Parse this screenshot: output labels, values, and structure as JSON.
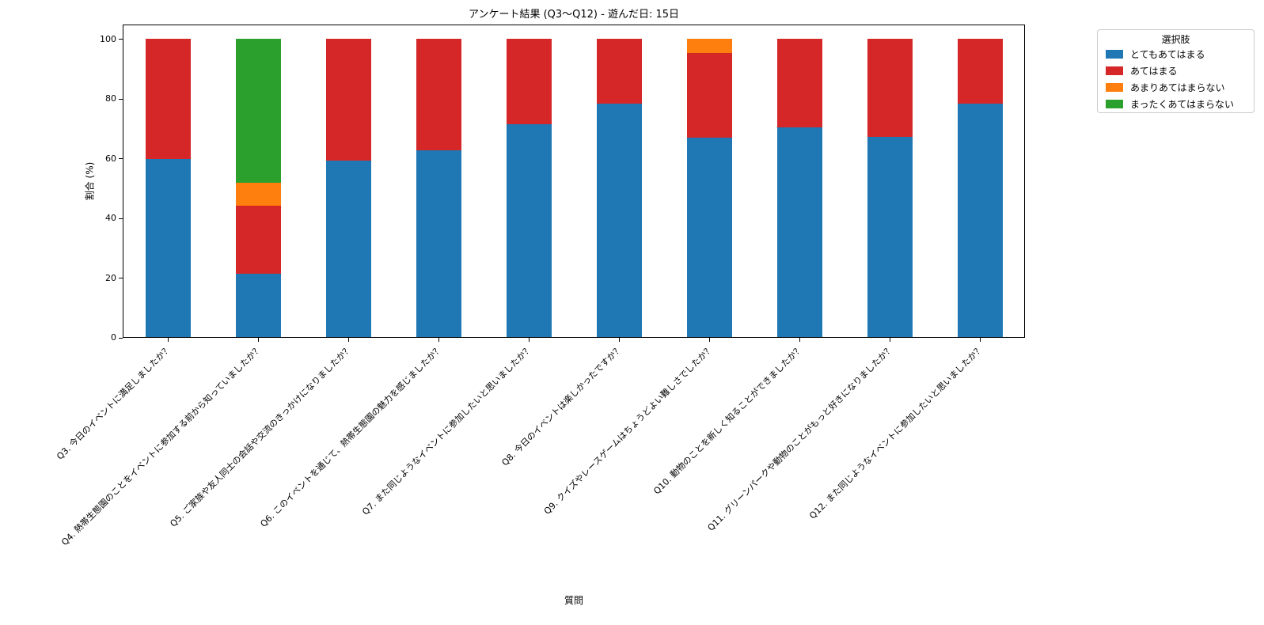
{
  "chart_data": {
    "type": "bar",
    "stacked": true,
    "orientation": "vertical",
    "title": "アンケート結果 (Q3〜Q12) - 遊んだ日: 15日",
    "xlabel": "質問",
    "ylabel": "割合 (%)",
    "ylim": [
      0,
      105
    ],
    "yticks": [
      0,
      20,
      40,
      60,
      80,
      100
    ],
    "grid": false,
    "legend": {
      "title": "選択肢",
      "position": "outside-upper-right"
    },
    "categories": [
      "Q3. 今日のイベントに満足しましたか？",
      "Q4. 熱帯生態園のことをイベントに参加する前から知っていましたか？",
      "Q5. ご家族や友人同士の会話や交流のきっかけになりましたか？",
      "Q6. このイベントを通じて、熱帯生態園の魅力を感じましたか？",
      "Q7. また同じようなイベントに参加したいと思いましたか？",
      "Q8. 今日のイベントは楽しかったですか？",
      "Q9. クイズやレースゲームはちょうどよい難しさでしたか？",
      "Q10. 動物のことを新しく知ることができましたか？",
      "Q11. グリーンパークや動物のことがもっと好きになりましたか？",
      "Q12. また同じようなイベントに参加したいと思いましたか？"
    ],
    "series": [
      {
        "name": "とてもあてはまる",
        "color": "#1f77b4",
        "values": [
          59.6,
          21.2,
          59.2,
          62.5,
          71.4,
          78.2,
          66.7,
          70.4,
          67.0,
          78.2
        ]
      },
      {
        "name": "あてはまる",
        "color": "#d62728",
        "values": [
          40.4,
          22.9,
          40.8,
          37.5,
          28.6,
          21.8,
          28.5,
          29.6,
          33.0,
          21.8
        ]
      },
      {
        "name": "あまりあてはまらない",
        "color": "#ff7f0e",
        "values": [
          0,
          7.5,
          0,
          0,
          0,
          0,
          4.8,
          0,
          0,
          0
        ]
      },
      {
        "name": "まったくあてはまらない",
        "color": "#2ca02c",
        "values": [
          0,
          48.4,
          0,
          0,
          0,
          0,
          0,
          0,
          0,
          0
        ]
      }
    ]
  }
}
